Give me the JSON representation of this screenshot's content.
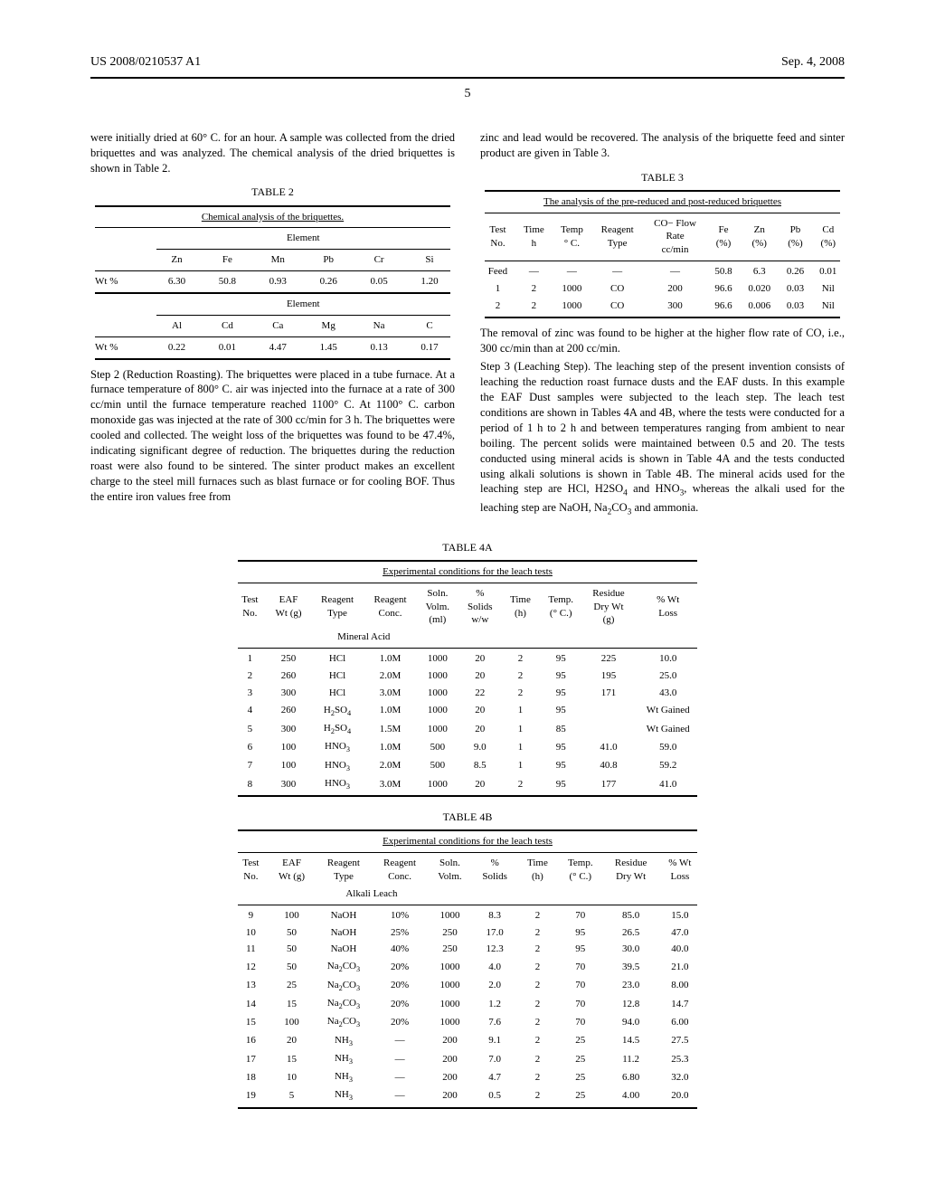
{
  "header": {
    "left": "US 2008/0210537 A1",
    "right": "Sep. 4, 2008",
    "page": "5"
  },
  "col1": {
    "p1": "were initially dried at 60° C. for an hour. A sample was collected from the dried briquettes and was analyzed. The chemical analysis of the dried briquettes is shown in Table 2.",
    "p2": "Step 2 (Reduction Roasting). The briquettes were placed in a tube furnace. At a furnace temperature of 800° C. air was injected into the furnace at a rate of 300 cc/min until the furnace temperature reached 1100° C. At 1100° C. carbon monoxide gas was injected at the rate of 300 cc/min for 3 h. The briquettes were cooled and collected. The weight loss of the briquettes was found to be 47.4%, indicating significant degree of reduction. The briquettes during the reduction roast were also found to be sintered. The sinter product makes an excellent charge to the steel mill furnaces such as blast furnace or for cooling BOF. Thus the entire iron values free from"
  },
  "col2": {
    "p1": "zinc and lead would be recovered. The analysis of the briquette feed and sinter product are given in Table 3.",
    "p2": "The removal of zinc was found to be higher at the higher flow rate of CO, i.e., 300 cc/min than at 200 cc/min.",
    "p3a": "Step 3 (Leaching Step). The leaching step of the present invention consists of leaching the reduction roast furnace dusts and the EAF dusts. In this example the EAF Dust samples were subjected to the leach step. The leach test conditions are shown in Tables 4A and 4B, where the tests were conducted for a period of 1 h to 2 h and between temperatures ranging from ambient to near boiling. The percent solids were maintained between 0.5 and 20. The tests conducted using mineral acids is shown in Table 4A and the tests conducted using alkali solutions is shown in Table 4B. The mineral acids used for the leaching step are HCl, H",
    "p3b": " and HNO",
    "p3c": ", whereas the alkali used for the leaching step are NaOH, Na",
    "p3d": " and ammonia."
  },
  "table2": {
    "caption": "TABLE 2",
    "title": "Chemical analysis of the briquettes.",
    "group": "Element",
    "h1": [
      "Zn",
      "Fe",
      "Mn",
      "Pb",
      "Cr",
      "Si"
    ],
    "r1_label": "Wt %",
    "r1": [
      "6.30",
      "50.8",
      "0.93",
      "0.26",
      "0.05",
      "1.20"
    ],
    "h2": [
      "Al",
      "Cd",
      "Ca",
      "Mg",
      "Na",
      "C"
    ],
    "r2_label": "Wt %",
    "r2": [
      "0.22",
      "0.01",
      "4.47",
      "1.45",
      "0.13",
      "0.17"
    ]
  },
  "table3": {
    "caption": "TABLE 3",
    "title": "The analysis of the pre-reduced and post-reduced briquettes",
    "headers": [
      "Test\nNo.",
      "Time\nh",
      "Temp\n° C.",
      "Reagent\nType",
      "CO− Flow\nRate\ncc/min",
      "Fe\n(%)",
      "Zn\n(%)",
      "Pb\n(%)",
      "Cd\n(%)"
    ],
    "rows": [
      [
        "Feed",
        "—",
        "—",
        "—",
        "—",
        "50.8",
        "6.3",
        "0.26",
        "0.01"
      ],
      [
        "1",
        "2",
        "1000",
        "CO",
        "200",
        "96.6",
        "0.020",
        "0.03",
        "Nil"
      ],
      [
        "2",
        "2",
        "1000",
        "CO",
        "300",
        "96.6",
        "0.006",
        "0.03",
        "Nil"
      ]
    ]
  },
  "table4a": {
    "caption": "TABLE 4A",
    "title": "Experimental conditions for the leach tests",
    "headers": [
      "Test\nNo.",
      "EAF\nWt (g)",
      "Reagent\nType",
      "Reagent\nConc.",
      "Soln.\nVolm.\n(ml)",
      "%\nSolids\nw/w",
      "Time\n(h)",
      "Temp.\n(° C.)",
      "Residue\nDry Wt\n(g)",
      "% Wt\nLoss"
    ],
    "sub_header": "Mineral Acid",
    "rows": [
      [
        "1",
        "250",
        "HCl",
        "1.0M",
        "1000",
        "20",
        "2",
        "95",
        "225",
        "10.0"
      ],
      [
        "2",
        "260",
        "HCl",
        "2.0M",
        "1000",
        "20",
        "2",
        "95",
        "195",
        "25.0"
      ],
      [
        "3",
        "300",
        "HCl",
        "3.0M",
        "1000",
        "22",
        "2",
        "95",
        "171",
        "43.0"
      ],
      [
        "4",
        "260",
        "H2SO4",
        "1.0M",
        "1000",
        "20",
        "1",
        "95",
        "",
        "Wt Gained"
      ],
      [
        "5",
        "300",
        "H2SO4",
        "1.5M",
        "1000",
        "20",
        "1",
        "85",
        "",
        "Wt Gained"
      ],
      [
        "6",
        "100",
        "HNO3",
        "1.0M",
        "500",
        "9.0",
        "1",
        "95",
        "41.0",
        "59.0"
      ],
      [
        "7",
        "100",
        "HNO3",
        "2.0M",
        "500",
        "8.5",
        "1",
        "95",
        "40.8",
        "59.2"
      ],
      [
        "8",
        "300",
        "HNO3",
        "3.0M",
        "1000",
        "20",
        "2",
        "95",
        "177",
        "41.0"
      ]
    ]
  },
  "table4b": {
    "caption": "TABLE 4B",
    "title": "Experimental conditions for the leach tests",
    "headers": [
      "Test\nNo.",
      "EAF\nWt (g)",
      "Reagent\nType",
      "Reagent\nConc.",
      "Soln.\nVolm.",
      "%\nSolids",
      "Time\n(h)",
      "Temp.\n(° C.)",
      "Residue\nDry Wt",
      "% Wt\nLoss"
    ],
    "sub_header": "Alkali Leach",
    "rows": [
      [
        "9",
        "100",
        "NaOH",
        "10%",
        "1000",
        "8.3",
        "2",
        "70",
        "85.0",
        "15.0"
      ],
      [
        "10",
        "50",
        "NaOH",
        "25%",
        "250",
        "17.0",
        "2",
        "95",
        "26.5",
        "47.0"
      ],
      [
        "11",
        "50",
        "NaOH",
        "40%",
        "250",
        "12.3",
        "2",
        "95",
        "30.0",
        "40.0"
      ],
      [
        "12",
        "50",
        "Na2CO3",
        "20%",
        "1000",
        "4.0",
        "2",
        "70",
        "39.5",
        "21.0"
      ],
      [
        "13",
        "25",
        "Na2CO3",
        "20%",
        "1000",
        "2.0",
        "2",
        "70",
        "23.0",
        "8.00"
      ],
      [
        "14",
        "15",
        "Na2CO3",
        "20%",
        "1000",
        "1.2",
        "2",
        "70",
        "12.8",
        "14.7"
      ],
      [
        "15",
        "100",
        "Na2CO3",
        "20%",
        "1000",
        "7.6",
        "2",
        "70",
        "94.0",
        "6.00"
      ],
      [
        "16",
        "20",
        "NH3",
        "—",
        "200",
        "9.1",
        "2",
        "25",
        "14.5",
        "27.5"
      ],
      [
        "17",
        "15",
        "NH3",
        "—",
        "200",
        "7.0",
        "2",
        "25",
        "11.2",
        "25.3"
      ],
      [
        "18",
        "10",
        "NH3",
        "—",
        "200",
        "4.7",
        "2",
        "25",
        "6.80",
        "32.0"
      ],
      [
        "19",
        "5",
        "NH3",
        "—",
        "200",
        "0.5",
        "2",
        "25",
        "4.00",
        "20.0"
      ]
    ]
  }
}
